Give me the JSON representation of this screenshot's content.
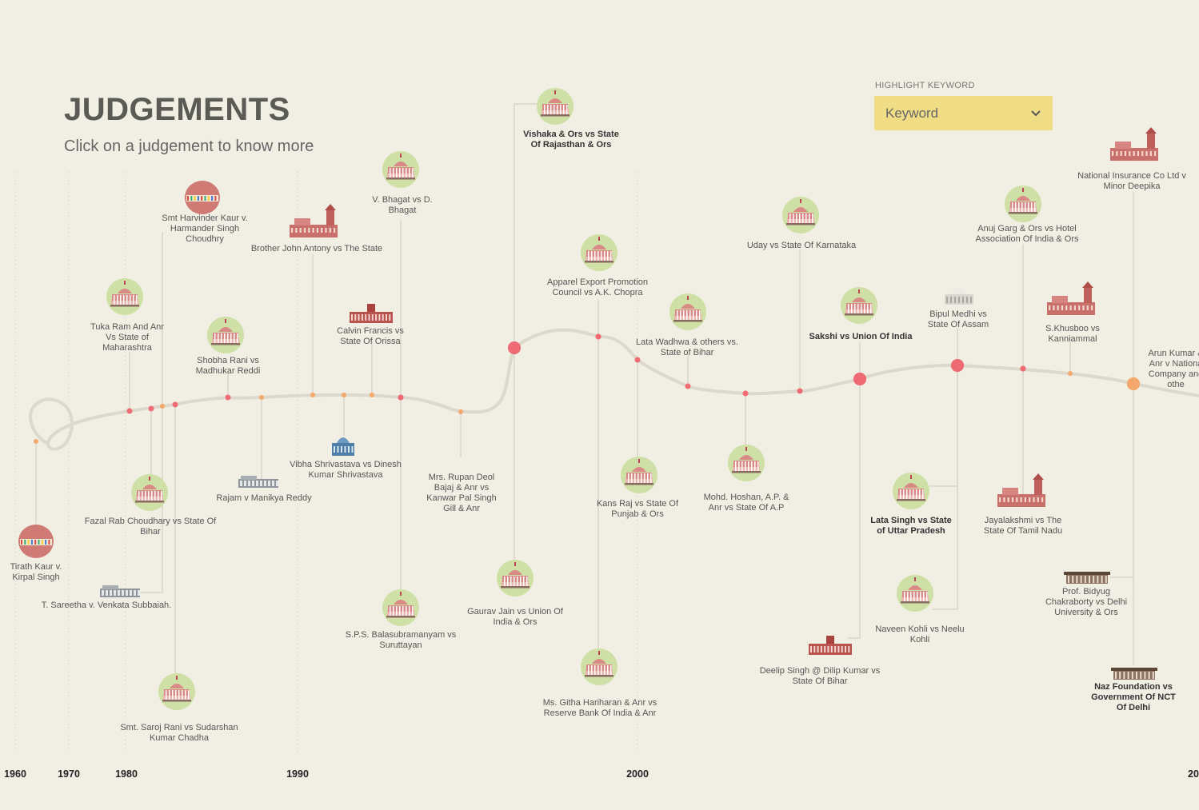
{
  "header": {
    "title": "JUDGEMENTS",
    "subtitle": "Click on a judgement to know more"
  },
  "keyword_filter": {
    "label": "HIGHLIGHT KEYWORD",
    "value": "Keyword",
    "icon": "chevron-down-icon"
  },
  "colors": {
    "background": "#f1efe4",
    "timeline": "#dcd8cb",
    "marker_red": "#ef6b73",
    "marker_orange": "#f4a86b",
    "badge_green": "#cfe0a6",
    "badge_red": "#cf7a75",
    "dropdown": "#f1dd86"
  },
  "year_axis": [
    "1960",
    "1970",
    "1980",
    "1990",
    "2000",
    "20"
  ],
  "judgements": [
    {
      "id": "tirath-kaur",
      "title": "Tirath Kaur v. Kirpal Singh",
      "lines": [
        "Tirath Kaur v.",
        "Kirpal Singh"
      ],
      "icon": "building-badge-icon",
      "bold": false
    },
    {
      "id": "sareetha",
      "title": "T. Sareetha v. Venkata Subbaiah.",
      "lines": [
        "T. Sareetha v. Venkata Subbaiah."
      ],
      "icon": "gray-building-icon",
      "bold": false
    },
    {
      "id": "tuka-ram",
      "title": "Tuka Ram And Anr Vs State of Maharashtra",
      "lines": [
        "Tuka Ram And Anr",
        "Vs State of",
        "Maharashtra"
      ],
      "icon": "supreme-court-icon",
      "bold": false
    },
    {
      "id": "fazal-rab",
      "title": "Fazal Rab Choudhary vs State Of Bihar",
      "lines": [
        "Fazal Rab Choudhary vs State Of",
        "Bihar"
      ],
      "icon": "supreme-court-icon",
      "bold": false
    },
    {
      "id": "harvinder-kaur",
      "title": "Smt Harvinder Kaur v. Harmander Singh Choudhry",
      "lines": [
        "Smt Harvinder Kaur v.",
        "Harmander Singh",
        "Choudhry"
      ],
      "icon": "building-badge-icon",
      "bold": false
    },
    {
      "id": "saroj-rani",
      "title": "Smt. Saroj Rani vs Sudarshan Kumar Chadha",
      "lines": [
        "Smt. Saroj Rani vs Sudarshan",
        "Kumar Chadha"
      ],
      "icon": "supreme-court-icon",
      "bold": false
    },
    {
      "id": "shobha-rani",
      "title": "Shobha Rani vs Madhukar Reddi",
      "lines": [
        "Shobha Rani vs",
        "Madhukar Reddi"
      ],
      "icon": "supreme-court-icon",
      "bold": false
    },
    {
      "id": "rajam",
      "title": "Rajam v Manikya Reddy",
      "lines": [
        "Rajam v Manikya Reddy"
      ],
      "icon": "gray-building-icon",
      "bold": false
    },
    {
      "id": "john-antony",
      "title": "Brother John Antony vs The State",
      "lines": [
        "Brother John Antony vs The State"
      ],
      "icon": "red-palace-icon",
      "bold": false
    },
    {
      "id": "vibha",
      "title": "Vibha Shrivastava vs Dinesh Kumar Shrivastava",
      "lines": [
        "Vibha Shrivastava vs Dinesh",
        "Kumar Shrivastava"
      ],
      "icon": "blue-palace-icon",
      "bold": false
    },
    {
      "id": "calvin",
      "title": "Calvin Francis vs State Of Orissa",
      "lines": [
        "Calvin Francis vs",
        "State Of Orissa"
      ],
      "icon": "red-hall-icon",
      "bold": false
    },
    {
      "id": "bhagat",
      "title": "V. Bhagat vs D. Bhagat",
      "lines": [
        "V. Bhagat vs D.",
        "Bhagat"
      ],
      "icon": "supreme-court-icon",
      "bold": false
    },
    {
      "id": "sps",
      "title": "S.P.S. Balasubramanyam vs Suruttayan",
      "lines": [
        "S.P.S. Balasubramanyam vs",
        "Suruttayan"
      ],
      "icon": "supreme-court-icon",
      "bold": false
    },
    {
      "id": "rupan-deol",
      "title": "Mrs. Rupan Deol Bajaj & Anr vs Kanwar Pal Singh Gill & Anr",
      "lines": [
        "Mrs. Rupan Deol",
        "Bajaj & Anr vs",
        "Kanwar Pal Singh",
        "Gill & Anr"
      ],
      "icon": "",
      "bold": false
    },
    {
      "id": "vishaka",
      "title": "Vishaka & Ors vs State Of Rajasthan & Ors",
      "lines": [
        "Vishaka & Ors vs State",
        "Of Rajasthan & Ors"
      ],
      "icon": "supreme-court-icon",
      "bold": true
    },
    {
      "id": "gaurav-jain",
      "title": "Gaurav Jain vs Union Of India & Ors",
      "lines": [
        "Gaurav Jain vs Union Of",
        "India & Ors"
      ],
      "icon": "supreme-court-icon",
      "bold": false
    },
    {
      "id": "apparel",
      "title": "Apparel Export Promotion Council vs A.K. Chopra",
      "lines": [
        "Apparel Export Promotion",
        "Council vs A.K. Chopra"
      ],
      "icon": "supreme-court-icon",
      "bold": false
    },
    {
      "id": "githa",
      "title": "Ms. Githa Hariharan & Anr vs Reserve Bank Of India & Anr",
      "lines": [
        "Ms. Githa Hariharan & Anr vs",
        "Reserve Bank Of India & Anr"
      ],
      "icon": "supreme-court-icon",
      "bold": false
    },
    {
      "id": "kans-raj",
      "title": "Kans Raj vs State Of Punjab & Ors",
      "lines": [
        "Kans Raj vs State Of",
        "Punjab & Ors"
      ],
      "icon": "supreme-court-icon",
      "bold": false
    },
    {
      "id": "lata-wadhwa",
      "title": "Lata Wadhwa & others vs. State of Bihar",
      "lines": [
        "Lata Wadhwa & others vs.",
        "State of Bihar"
      ],
      "icon": "supreme-court-icon",
      "bold": false
    },
    {
      "id": "hoshan",
      "title": "Mohd. Hoshan, A.P. & Anr vs State Of A.P",
      "lines": [
        "Mohd. Hoshan, A.P. &",
        "Anr vs State Of A.P"
      ],
      "icon": "supreme-court-icon",
      "bold": false
    },
    {
      "id": "uday",
      "title": "Uday vs State Of Karnataka",
      "lines": [
        "Uday vs State Of Karnataka"
      ],
      "icon": "supreme-court-icon",
      "bold": false
    },
    {
      "id": "sakshi",
      "title": "Sakshi vs Union Of India",
      "lines": [
        "Sakshi vs Union Of India"
      ],
      "icon": "supreme-court-icon",
      "bold": true
    },
    {
      "id": "deelip",
      "title": "Deelip Singh @ Dilip Kumar vs State Of Bihar",
      "lines": [
        "Deelip Singh @ Dilip Kumar vs",
        "State Of Bihar"
      ],
      "icon": "red-hall-icon",
      "bold": false
    },
    {
      "id": "lata-singh",
      "title": "Lata Singh vs State of Uttar Pradesh",
      "lines": [
        "Lata Singh vs State",
        "of Uttar Pradesh"
      ],
      "icon": "supreme-court-icon",
      "bold": true
    },
    {
      "id": "naveen",
      "title": "Naveen Kohli vs Neelu Kohli",
      "lines": [
        "Naveen Kohli vs Neelu",
        "Kohli"
      ],
      "icon": "supreme-court-icon",
      "bold": false
    },
    {
      "id": "bipul",
      "title": "Bipul Medhi vs State Of Assam",
      "lines": [
        "Bipul Medhi vs",
        "State Of Assam"
      ],
      "icon": "white-dome-icon",
      "bold": false
    },
    {
      "id": "anuj-garg",
      "title": "Anuj Garg & Ors vs Hotel Association Of India & Ors",
      "lines": [
        "Anuj Garg & Ors vs Hotel",
        "Association Of India & Ors"
      ],
      "icon": "supreme-court-icon",
      "bold": false
    },
    {
      "id": "jayalakshmi",
      "title": "Jayalakshmi vs The State Of Tamil Nadu",
      "lines": [
        "Jayalakshmi vs The",
        "State Of Tamil Nadu"
      ],
      "icon": "red-palace-icon",
      "bold": false
    },
    {
      "id": "khusboo",
      "title": "S.Khusboo vs Kanniammal",
      "lines": [
        "S.Khusboo vs",
        "Kanniammal"
      ],
      "icon": "red-palace-icon",
      "bold": false
    },
    {
      "id": "bidyug",
      "title": "Prof. Bidyug Chakraborty vs Delhi University & Ors",
      "lines": [
        "Prof. Bidyug",
        "Chakraborty vs Delhi",
        "University & Ors"
      ],
      "icon": "brown-hall-icon",
      "bold": false
    },
    {
      "id": "naz",
      "title": "Naz Foundation vs Government Of NCT Of Delhi",
      "lines": [
        "Naz Foundation vs",
        "Government Of NCT",
        "Of Delhi"
      ],
      "icon": "brown-hall-icon",
      "bold": true
    },
    {
      "id": "national-insurance",
      "title": "National Insurance Co Ltd v Minor Deepika",
      "lines": [
        "National Insurance Co Ltd v",
        "Minor Deepika"
      ],
      "icon": "red-palace-icon",
      "bold": false
    },
    {
      "id": "arun-kumar",
      "title": "Arun Kumar & Anr v National Company and others",
      "lines": [
        "Arun Kumar &",
        "Anr v Nationa",
        "Company and",
        "othe"
      ],
      "icon": "",
      "bold": false
    }
  ]
}
